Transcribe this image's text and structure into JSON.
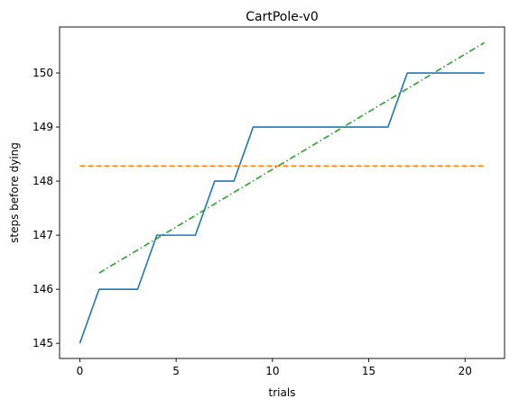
{
  "chart_data": {
    "type": "line",
    "title": "CartPole-v0",
    "xlabel": "trials",
    "ylabel": "steps before dying",
    "xlim": [
      -1.05,
      22.05
    ],
    "ylim": [
      144.72,
      150.85
    ],
    "xticks": [
      0,
      5,
      10,
      15,
      20
    ],
    "yticks": [
      145,
      146,
      147,
      148,
      149,
      150
    ],
    "grid": false,
    "legend": "none",
    "series": [
      {
        "style": "solid",
        "color": "#1f77b4",
        "x": [
          0,
          1,
          2,
          3,
          4,
          5,
          6,
          7,
          8,
          9,
          10,
          11,
          12,
          13,
          14,
          15,
          16,
          17,
          18,
          19,
          20,
          21
        ],
        "y": [
          145,
          146,
          146,
          146,
          147,
          147,
          147,
          148,
          148,
          149,
          149,
          149,
          149,
          149,
          149,
          149,
          149,
          150,
          150,
          150,
          150,
          150
        ]
      },
      {
        "style": "dashed",
        "color": "#ff7f0e",
        "x": [
          0,
          21
        ],
        "y": [
          148.28,
          148.28
        ]
      },
      {
        "style": "dashdot",
        "color": "#2ca02c",
        "x": [
          1,
          21
        ],
        "y": [
          146.3,
          150.56
        ]
      }
    ]
  }
}
